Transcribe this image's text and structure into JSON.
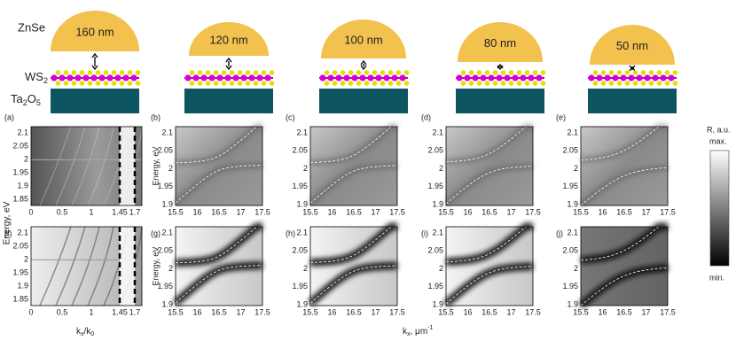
{
  "schematic": {
    "top_material": "ZnSe",
    "middle_material": {
      "base": "WS",
      "sub": "2"
    },
    "bottom_material": {
      "base1": "Ta",
      "sub1": "2",
      "base2": "O",
      "sub2": "5"
    },
    "gaps": [
      "160 nm",
      "120 nm",
      "100 nm",
      "80 nm",
      "50 nm"
    ]
  },
  "panels": {
    "labels": [
      "(a)",
      "(b)",
      "(c)",
      "(d)",
      "(e)",
      "(f)",
      "(g)",
      "(h)",
      "(i)",
      "(j)"
    ]
  },
  "axes": {
    "energy_label": "Energy, eV",
    "k_ratio_label": {
      "base": "k",
      "sub": "x",
      "mid": "/k",
      "sub2": "0"
    },
    "k_label": {
      "base": "k",
      "sub": "x",
      "mid": ", μm",
      "sup": "-1"
    },
    "angle_yticks": [
      "2.1",
      "2.05",
      "2",
      "1.95",
      "1.9",
      "1.85"
    ],
    "angle_xticks": [
      "0",
      "0.5",
      "1",
      "1.45",
      "1.7"
    ],
    "k_yticks": [
      "2.1",
      "2.05",
      "2",
      "1.95",
      "1.9"
    ],
    "k_xticks": [
      "15.5",
      "16",
      "16.5",
      "17",
      "17.5"
    ]
  },
  "colorbar": {
    "title": "R, a.u.",
    "max": "max.",
    "min": "min."
  }
}
